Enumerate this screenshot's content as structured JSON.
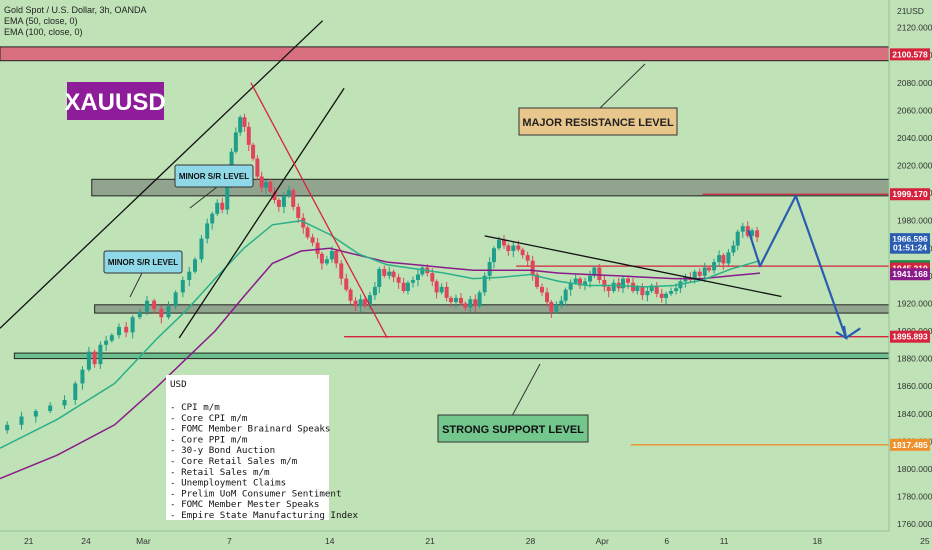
{
  "header": {
    "symbol_line": "Gold Spot / U.S. Dollar, 3h, OANDA",
    "ema50_line": "EMA (50, close, 0)",
    "ema100_line": "EMA (100, close, 0)",
    "currency": "USD"
  },
  "logo_text": "XAUUSD",
  "colors": {
    "background": "#bfe3b6",
    "up_candle": "#1f9e8b",
    "down_candle": "#e0455b",
    "ema50": "#2bb08a",
    "ema100": "#8b1b8b",
    "resistance_zone": "#e04a6e",
    "sr_zone": "#7d8a7d",
    "support_zone": "#4caf7d",
    "projection": "#2a5db0",
    "badge_blue": "#2a5db0",
    "badge_red": "#d6233d",
    "badge_green": "#1f8a4c",
    "badge_orange": "#f0902c"
  },
  "annotations": {
    "major_resistance": "MAJOR RESISTANCE LEVEL",
    "strong_support": "STRONG SUPPORT LEVEL",
    "minor_sr_1": "MINOR S/R LEVEL",
    "minor_sr_2": "MINOR S/R LEVEL"
  },
  "news_box": {
    "title": "USD",
    "items": [
      "- CPI m/m",
      "- Core CPI m/m",
      "- FOMC Member Brainard Speaks",
      "- Core PPI m/m",
      "- 30-y Bond Auction",
      "- Core Retail Sales m/m",
      "- Retail Sales m/m",
      "- Unemployment Claims",
      "- Prelim UoM Consumer Sentiment",
      "- FOMC Member Mester Speaks",
      "- Empire State Manufacturing Index"
    ]
  },
  "price_badges": [
    {
      "text": "2100.578",
      "price": 2100.578,
      "color": "#d6233d"
    },
    {
      "text": "1999.170",
      "price": 1999.17,
      "color": "#d6233d"
    },
    {
      "text": "1966.596",
      "price": 1966.596,
      "color": "#2a5db0"
    },
    {
      "text": "01:51:24",
      "price": 1960.4,
      "color": "#2a5db0"
    },
    {
      "text": "1947.027",
      "price": 1947.027,
      "color": "#1f8a4c"
    },
    {
      "text": "1945.219",
      "price": 1945.219,
      "color": "#d6233d"
    },
    {
      "text": "1941.168",
      "price": 1941.168,
      "color": "#8b1b8b"
    },
    {
      "text": "1895.893",
      "price": 1895.893,
      "color": "#d6233d"
    },
    {
      "text": "1817.485",
      "price": 1817.485,
      "color": "#f0902c"
    }
  ],
  "chart_data": {
    "type": "candlestick",
    "symbol": "Gold Spot / U.S. Dollar",
    "timeframe": "3h",
    "y_axis": {
      "range": [
        1755,
        2140
      ],
      "tick_labels": [
        "2120.000",
        "2100.000",
        "2080.000",
        "2060.000",
        "2040.000",
        "2020.000",
        "2000.000",
        "1980.000",
        "1960.000",
        "1940.000",
        "1920.000",
        "1900.000",
        "1880.000",
        "1860.000",
        "1840.000",
        "1820.000",
        "1800.000",
        "1780.000",
        "1760.000"
      ],
      "tick_values": [
        2120,
        2100,
        2080,
        2060,
        2040,
        2020,
        2000,
        1980,
        1960,
        1940,
        1920,
        1900,
        1880,
        1860,
        1840,
        1820,
        1800,
        1780,
        1760
      ],
      "top_label": "21",
      "unit_label": "USD"
    },
    "x_axis": {
      "range": [
        0,
        62
      ],
      "tick_labels": [
        "21",
        "24",
        "Mar",
        "7",
        "14",
        "21",
        "28",
        "Apr",
        "6",
        "11",
        "18",
        "25"
      ],
      "tick_positions": [
        2,
        6,
        10,
        16,
        23,
        30,
        37,
        42,
        46.5,
        50.5,
        57,
        64.5
      ]
    },
    "price_path": [
      [
        0,
        1828
      ],
      [
        1,
        1832
      ],
      [
        2,
        1838
      ],
      [
        3,
        1842
      ],
      [
        4,
        1846
      ],
      [
        5,
        1850
      ],
      [
        5.5,
        1862
      ],
      [
        6,
        1872
      ],
      [
        6.4,
        1885
      ],
      [
        6.8,
        1876
      ],
      [
        7.2,
        1890
      ],
      [
        7.6,
        1893
      ],
      [
        8,
        1897
      ],
      [
        8.6,
        1903
      ],
      [
        9,
        1899
      ],
      [
        9.5,
        1910
      ],
      [
        10,
        1914
      ],
      [
        10.5,
        1922
      ],
      [
        11,
        1916
      ],
      [
        11.5,
        1910
      ],
      [
        12,
        1918
      ],
      [
        12.5,
        1928
      ],
      [
        13,
        1937
      ],
      [
        13.4,
        1943
      ],
      [
        13.8,
        1952
      ],
      [
        14.3,
        1967
      ],
      [
        14.6,
        1978
      ],
      [
        15,
        1985
      ],
      [
        15.3,
        1993
      ],
      [
        15.7,
        1988
      ],
      [
        16,
        2008
      ],
      [
        16.3,
        2030
      ],
      [
        16.6,
        2044
      ],
      [
        16.9,
        2055
      ],
      [
        17.2,
        2048
      ],
      [
        17.5,
        2035
      ],
      [
        17.8,
        2025
      ],
      [
        18.1,
        2012
      ],
      [
        18.4,
        2004
      ],
      [
        18.7,
        2008
      ],
      [
        19,
        2001
      ],
      [
        19.3,
        1995
      ],
      [
        19.6,
        1990
      ],
      [
        20,
        1998
      ],
      [
        20.3,
        2002
      ],
      [
        20.6,
        1990
      ],
      [
        21,
        1982
      ],
      [
        21.3,
        1975
      ],
      [
        21.6,
        1968
      ],
      [
        22,
        1964
      ],
      [
        22.3,
        1956
      ],
      [
        22.6,
        1949
      ],
      [
        23,
        1952
      ],
      [
        23.3,
        1958
      ],
      [
        23.6,
        1949
      ],
      [
        24,
        1938
      ],
      [
        24.3,
        1930
      ],
      [
        24.6,
        1922
      ],
      [
        25,
        1918
      ],
      [
        25.3,
        1923
      ],
      [
        25.6,
        1918
      ],
      [
        26,
        1926
      ],
      [
        26.3,
        1932
      ],
      [
        26.6,
        1945
      ],
      [
        27,
        1940
      ],
      [
        27.3,
        1943
      ],
      [
        27.6,
        1939
      ],
      [
        28,
        1935
      ],
      [
        28.3,
        1929
      ],
      [
        28.6,
        1935
      ],
      [
        29,
        1937
      ],
      [
        29.3,
        1941
      ],
      [
        29.6,
        1946
      ],
      [
        30,
        1942
      ],
      [
        30.3,
        1936
      ],
      [
        30.6,
        1928
      ],
      [
        31,
        1932
      ],
      [
        31.3,
        1924
      ],
      [
        31.6,
        1921
      ],
      [
        32,
        1924
      ],
      [
        32.3,
        1920
      ],
      [
        32.6,
        1917
      ],
      [
        33,
        1923
      ],
      [
        33.3,
        1918
      ],
      [
        33.6,
        1928
      ],
      [
        34,
        1940
      ],
      [
        34.3,
        1950
      ],
      [
        34.6,
        1960
      ],
      [
        35,
        1966
      ],
      [
        35.3,
        1962
      ],
      [
        35.6,
        1958
      ],
      [
        36,
        1962
      ],
      [
        36.3,
        1959
      ],
      [
        36.6,
        1955
      ],
      [
        37,
        1951
      ],
      [
        37.3,
        1941
      ],
      [
        37.6,
        1932
      ],
      [
        38,
        1928
      ],
      [
        38.3,
        1921
      ],
      [
        38.6,
        1914
      ],
      [
        39,
        1919
      ],
      [
        39.3,
        1922
      ],
      [
        39.6,
        1930
      ],
      [
        40,
        1935
      ],
      [
        40.3,
        1938
      ],
      [
        40.6,
        1933
      ],
      [
        41,
        1936
      ],
      [
        41.3,
        1940
      ],
      [
        41.6,
        1946
      ],
      [
        42,
        1937
      ],
      [
        42.3,
        1932
      ],
      [
        42.6,
        1929
      ],
      [
        43,
        1935
      ],
      [
        43.3,
        1931
      ],
      [
        43.6,
        1938
      ],
      [
        44,
        1935
      ],
      [
        44.3,
        1929
      ],
      [
        44.6,
        1932
      ],
      [
        45,
        1926
      ],
      [
        45.3,
        1929
      ],
      [
        45.6,
        1933
      ],
      [
        46,
        1927
      ],
      [
        46.3,
        1924
      ],
      [
        46.6,
        1927
      ],
      [
        47,
        1929
      ],
      [
        47.3,
        1931
      ],
      [
        47.6,
        1936
      ],
      [
        48,
        1939
      ],
      [
        48.3,
        1937
      ],
      [
        48.6,
        1943
      ],
      [
        49,
        1940
      ],
      [
        49.3,
        1946
      ],
      [
        49.6,
        1944
      ],
      [
        50,
        1950
      ],
      [
        50.3,
        1955
      ],
      [
        50.6,
        1949
      ],
      [
        51,
        1957
      ],
      [
        51.3,
        1962
      ],
      [
        51.6,
        1972
      ],
      [
        52,
        1976
      ],
      [
        52.3,
        1969
      ],
      [
        52.6,
        1973
      ],
      [
        53,
        1968
      ]
    ],
    "ema50": [
      [
        0,
        1815
      ],
      [
        4,
        1836
      ],
      [
        8,
        1862
      ],
      [
        11,
        1895
      ],
      [
        13,
        1915
      ],
      [
        15,
        1938
      ],
      [
        17,
        1960
      ],
      [
        19,
        1977
      ],
      [
        21,
        1980
      ],
      [
        23,
        1970
      ],
      [
        25,
        1956
      ],
      [
        27,
        1948
      ],
      [
        29,
        1945
      ],
      [
        31,
        1942
      ],
      [
        33,
        1938
      ],
      [
        35,
        1939
      ],
      [
        37,
        1941
      ],
      [
        39,
        1936
      ],
      [
        41,
        1933
      ],
      [
        43,
        1933
      ],
      [
        45,
        1932
      ],
      [
        47,
        1933
      ],
      [
        49,
        1937
      ],
      [
        51,
        1945
      ],
      [
        53,
        1951
      ]
    ],
    "ema100": [
      [
        0,
        1793
      ],
      [
        4,
        1810
      ],
      [
        8,
        1832
      ],
      [
        11,
        1860
      ],
      [
        13,
        1880
      ],
      [
        15,
        1900
      ],
      [
        17,
        1925
      ],
      [
        19,
        1949
      ],
      [
        21,
        1958
      ],
      [
        23,
        1960
      ],
      [
        25,
        1955
      ],
      [
        27,
        1950
      ],
      [
        29,
        1948
      ],
      [
        31,
        1946
      ],
      [
        33,
        1944
      ],
      [
        35,
        1944
      ],
      [
        37,
        1944
      ],
      [
        39,
        1942
      ],
      [
        41,
        1941
      ],
      [
        43,
        1940
      ],
      [
        45,
        1939
      ],
      [
        47,
        1938
      ],
      [
        49,
        1938
      ],
      [
        51,
        1940
      ],
      [
        53,
        1942
      ]
    ],
    "zones": [
      {
        "name": "major-resistance-zone",
        "from": 2096,
        "to": 2106
      },
      {
        "name": "minor-sr-zone-upper",
        "from": 1998,
        "to": 2010
      },
      {
        "name": "minor-sr-zone-lower",
        "from": 1913,
        "to": 1919
      },
      {
        "name": "strong-support-zone",
        "from": 1880,
        "to": 1884
      }
    ],
    "horizontal_levels": [
      {
        "name": "resistance-level-1999",
        "price": 1999.17,
        "from_x": 49
      },
      {
        "name": "level-1947",
        "price": 1947.027,
        "from_x": 36
      },
      {
        "name": "level-1895",
        "price": 1895.893,
        "from_x": 24
      },
      {
        "name": "level-1817",
        "price": 1817.485,
        "from_x": 44
      }
    ],
    "trend_lines": [
      {
        "name": "channel-upper-line",
        "from": [
          0,
          1902
        ],
        "to": [
          22.5,
          2125
        ]
      },
      {
        "name": "channel-lower-line",
        "from": [
          12.5,
          1895
        ],
        "to": [
          24,
          2076
        ]
      },
      {
        "name": "downtrend-line",
        "from": [
          17.5,
          2080
        ],
        "to": [
          27,
          1895
        ]
      },
      {
        "name": "descending-trend-line",
        "from": [
          33.8,
          1969
        ],
        "to": [
          54.5,
          1925
        ]
      }
    ],
    "projection_path": [
      [
        52.2,
        1973
      ],
      [
        53,
        1947
      ],
      [
        55.5,
        1998
      ],
      [
        59,
        1895
      ],
      [
        60,
        1902
      ]
    ]
  }
}
